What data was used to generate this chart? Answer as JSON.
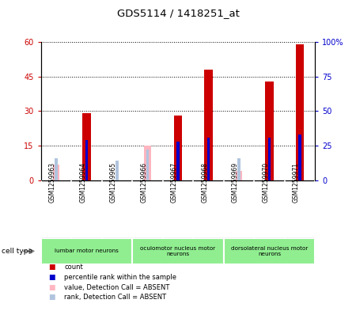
{
  "title": "GDS5114 / 1418251_at",
  "samples": [
    "GSM1259963",
    "GSM1259964",
    "GSM1259965",
    "GSM1259966",
    "GSM1259967",
    "GSM1259968",
    "GSM1259969",
    "GSM1259970",
    "GSM1259971"
  ],
  "count_values": [
    null,
    29,
    null,
    null,
    28,
    48,
    null,
    43,
    59
  ],
  "rank_values": [
    null,
    29,
    null,
    null,
    28,
    31,
    null,
    31,
    33
  ],
  "absent_value_values": [
    7,
    4,
    null,
    15,
    null,
    null,
    4,
    null,
    null
  ],
  "absent_rank_values": [
    16,
    null,
    14,
    22,
    null,
    null,
    16,
    null,
    null
  ],
  "ylim_left": [
    0,
    60
  ],
  "ylim_right": [
    0,
    100
  ],
  "yticks_left": [
    0,
    15,
    30,
    45,
    60
  ],
  "yticks_right": [
    0,
    25,
    50,
    75,
    100
  ],
  "ytick_labels_left": [
    "0",
    "15",
    "30",
    "45",
    "60"
  ],
  "ytick_labels_right": [
    "0",
    "25",
    "50",
    "75",
    "100%"
  ],
  "cell_type_groups": [
    {
      "label": "lumbar motor neurons",
      "start": 0,
      "end": 2
    },
    {
      "label": "oculomotor nucleus motor\nneurons",
      "start": 3,
      "end": 5
    },
    {
      "label": "dorsolateral nucleus motor\nneurons",
      "start": 6,
      "end": 8
    }
  ],
  "color_count": "#cc0000",
  "color_rank": "#0000cc",
  "color_absent_value": "#ffb6c1",
  "color_absent_rank": "#b0c4de",
  "group_color": "#90ee90",
  "background_color": "#ffffff",
  "sample_bg": "#d3d3d3",
  "legend_items": [
    [
      "#cc0000",
      "count"
    ],
    [
      "#0000cc",
      "percentile rank within the sample"
    ],
    [
      "#ffb6c1",
      "value, Detection Call = ABSENT"
    ],
    [
      "#b0c4de",
      "rank, Detection Call = ABSENT"
    ]
  ]
}
